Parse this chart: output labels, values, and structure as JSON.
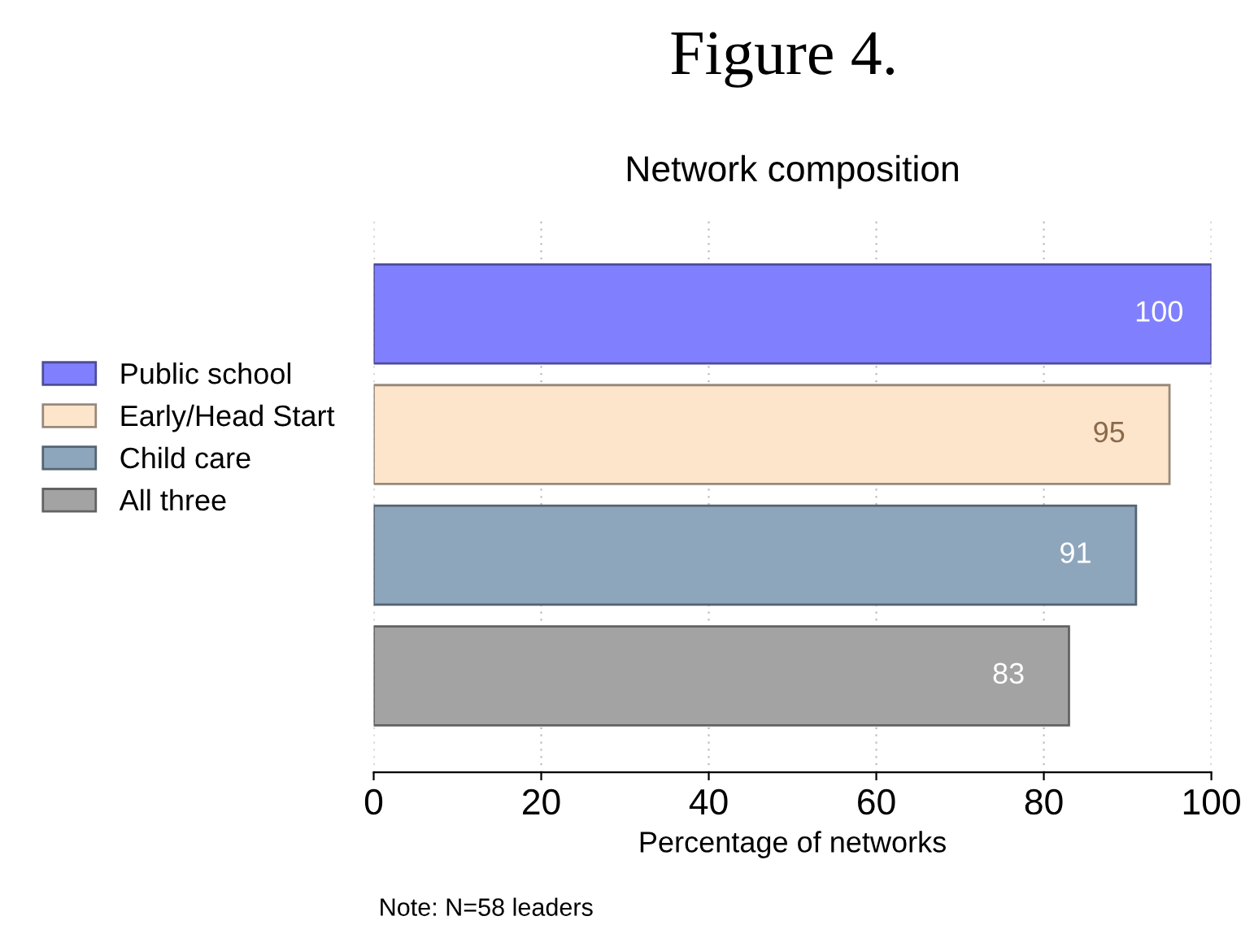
{
  "chart_data": {
    "type": "bar",
    "orientation": "horizontal",
    "title": "Figure 4.",
    "subtitle": "Network composition",
    "xlabel": "Percentage of networks",
    "categories": [
      null,
      null,
      null,
      null
    ],
    "series": [
      {
        "name": "Public school",
        "color": "#8080ff",
        "values": [
          100,
          null,
          null,
          null
        ]
      },
      {
        "name": "Early/Head Start",
        "color": "#fde5cc",
        "values": [
          null,
          95,
          null,
          null
        ]
      },
      {
        "name": "Child care",
        "color": "#8ea6bc",
        "values": [
          null,
          null,
          91,
          null
        ]
      },
      {
        "name": "All three",
        "color": "#a3a3a3",
        "values": [
          null,
          null,
          null,
          83
        ]
      }
    ],
    "xlim": [
      0,
      100
    ],
    "xticks": [
      0,
      20,
      40,
      60,
      80,
      100
    ],
    "grid": "x",
    "legend": "left",
    "data_labels": true,
    "annotations": [
      "Note: N=58 leaders"
    ]
  }
}
